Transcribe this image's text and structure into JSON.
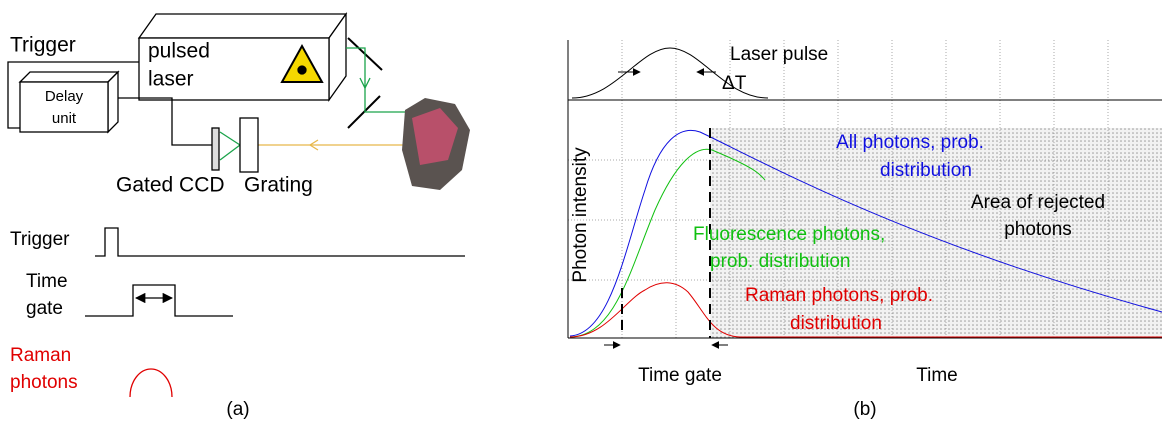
{
  "panel_a": {
    "trigger_label": "Trigger",
    "laser_label": [
      "pulsed",
      "laser"
    ],
    "delay_label": [
      "Delay",
      "unit"
    ],
    "ccd_label": "Gated CCD",
    "grating_label": "Grating",
    "timing": {
      "trigger": "Trigger",
      "time_gate": [
        "Time",
        "gate"
      ],
      "raman": [
        "Raman",
        "photons"
      ]
    },
    "caption": "(a)"
  },
  "panel_b": {
    "laser_pulse": "Laser pulse",
    "delta_t": "ΔT",
    "y_label": "Photon intensity",
    "all_photons": [
      "All photons, prob.",
      "distribution"
    ],
    "rejected": [
      "Area of rejected",
      "photons"
    ],
    "fluorescence": [
      "Fluorescence photons,",
      "prob. distribution"
    ],
    "raman": [
      "Raman photons, prob.",
      "distribution"
    ],
    "time_gate": "Time gate",
    "x_label": "Time",
    "caption": "(b)"
  }
}
